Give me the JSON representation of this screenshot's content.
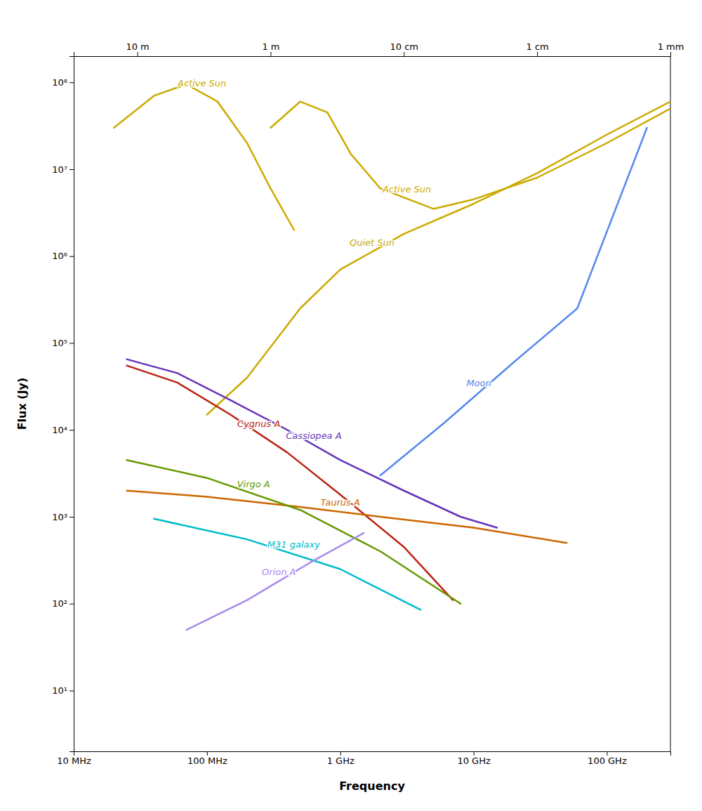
{
  "chart_data": {
    "type": "line",
    "xlabel": "Frequency",
    "ylabel": "Flux (Jy)",
    "log": true,
    "grid": false,
    "xlim": [
      10000000.0,
      300000000000.0
    ],
    "ylim": [
      2,
      200000000.0
    ],
    "xticks": [
      {
        "value": 10000000.0,
        "label": "10 MHz"
      },
      {
        "value": 100000000.0,
        "label": "100 MHz"
      },
      {
        "value": 1000000000.0,
        "label": "1 GHz"
      },
      {
        "value": 10000000000.0,
        "label": "10 GHz"
      },
      {
        "value": 100000000000.0,
        "label": "100 GHz"
      }
    ],
    "x2lim": [
      10000000.0,
      300000000000.0
    ],
    "x2ticks": [
      {
        "value": 30000000.0,
        "label": "10 m"
      },
      {
        "value": 300000000.0,
        "label": "1 m"
      },
      {
        "value": 3000000000.0,
        "label": "10 cm"
      },
      {
        "value": 30000000000.0,
        "label": "1 cm"
      },
      {
        "value": 300000000000.0,
        "label": "1 mm"
      }
    ],
    "yticks": [
      {
        "value": 10,
        "label": "10¹"
      },
      {
        "value": 100,
        "label": "10²"
      },
      {
        "value": 1000,
        "label": "10³"
      },
      {
        "value": 10000,
        "label": "10⁴"
      },
      {
        "value": 100000,
        "label": "10⁵"
      },
      {
        "value": 1000000,
        "label": "10⁶"
      },
      {
        "value": 10000000,
        "label": "10⁷"
      },
      {
        "value": 100000000,
        "label": "10⁸"
      }
    ],
    "series": [
      {
        "name": "Active Sun",
        "color": "#ccaa00",
        "x": [
          20000000.0,
          40000000.0,
          70000000.0,
          120000000.0,
          200000000.0,
          300000000.0,
          450000000.0
        ],
        "values": [
          30000000.0,
          70000000.0,
          95000000.0,
          60000000.0,
          20000000.0,
          6000000.0,
          2000000.0
        ]
      },
      {
        "name": "Active Sun",
        "color": "#ccaa00",
        "x": [
          300000000.0,
          500000000.0,
          800000000.0,
          1200000000.0,
          2000000000.0,
          5000000000.0,
          10000000000.0,
          30000000000.0,
          100000000000.0,
          300000000000.0
        ],
        "values": [
          30000000.0,
          60000000.0,
          45000000.0,
          15000000.0,
          6000000.0,
          3500000.0,
          4500000.0,
          8000000.0,
          20000000.0,
          50000000.0
        ]
      },
      {
        "name": "Quiet Sun",
        "color": "#ccaa00",
        "x": [
          100000000.0,
          200000000.0,
          500000000.0,
          1000000000.0,
          3000000000.0,
          10000000000.0,
          30000000000.0,
          100000000000.0,
          300000000000.0
        ],
        "values": [
          15000.0,
          40000.0,
          250000.0,
          700000.0,
          1800000.0,
          4000000.0,
          9000000.0,
          25000000.0,
          60000000.0
        ]
      },
      {
        "name": "Moon",
        "color": "#5588ee",
        "x": [
          2000000000.0,
          6000000000.0,
          20000000000.0,
          60000000000.0,
          200000000000.0
        ],
        "values": [
          3000.0,
          12000.0,
          60000.0,
          250000.0,
          30000000.0
        ]
      },
      {
        "name": "Cassiopea A",
        "color": "#6633bb",
        "x": [
          25000000.0,
          60000000.0,
          150000000.0,
          400000000.0,
          1000000000.0,
          3000000000.0,
          8000000000.0,
          15000000000.0
        ],
        "values": [
          65000.0,
          45000.0,
          22000.0,
          10000.0,
          4500.0,
          2000.0,
          1000.0,
          750.0
        ]
      },
      {
        "name": "Cygnus A",
        "color": "#bb2211",
        "x": [
          25000000.0,
          60000000.0,
          150000000.0,
          400000000.0,
          1000000000.0,
          3000000000.0,
          7000000000.0
        ],
        "values": [
          55000.0,
          35000.0,
          15000.0,
          5500.0,
          1800.0,
          450.0,
          110.0
        ]
      },
      {
        "name": "Taurus A",
        "color": "#cc6600",
        "x": [
          25000000.0,
          100000000.0,
          500000000.0,
          2000000000.0,
          10000000000.0,
          50000000000.0
        ],
        "values": [
          2000.0,
          1700.0,
          1300.0,
          1000.0,
          750.0,
          500.0
        ]
      },
      {
        "name": "Virgo A",
        "color": "#669900",
        "x": [
          25000000.0,
          100000000.0,
          500000000.0,
          2000000000.0,
          8000000000.0
        ],
        "values": [
          4500.0,
          2800.0,
          1200.0,
          400.0,
          100.0
        ]
      },
      {
        "name": "M31 galaxy",
        "color": "#00bbcc",
        "x": [
          40000000.0,
          200000000.0,
          1000000000.0,
          4000000000.0
        ],
        "values": [
          950.0,
          550.0,
          250.0,
          85.0
        ]
      },
      {
        "name": "Orion A",
        "color": "#aa88ee",
        "x": [
          70000000.0,
          200000000.0,
          600000000.0,
          1500000000.0
        ],
        "values": [
          50.0,
          110.0,
          300.0,
          650.0
        ]
      }
    ]
  }
}
